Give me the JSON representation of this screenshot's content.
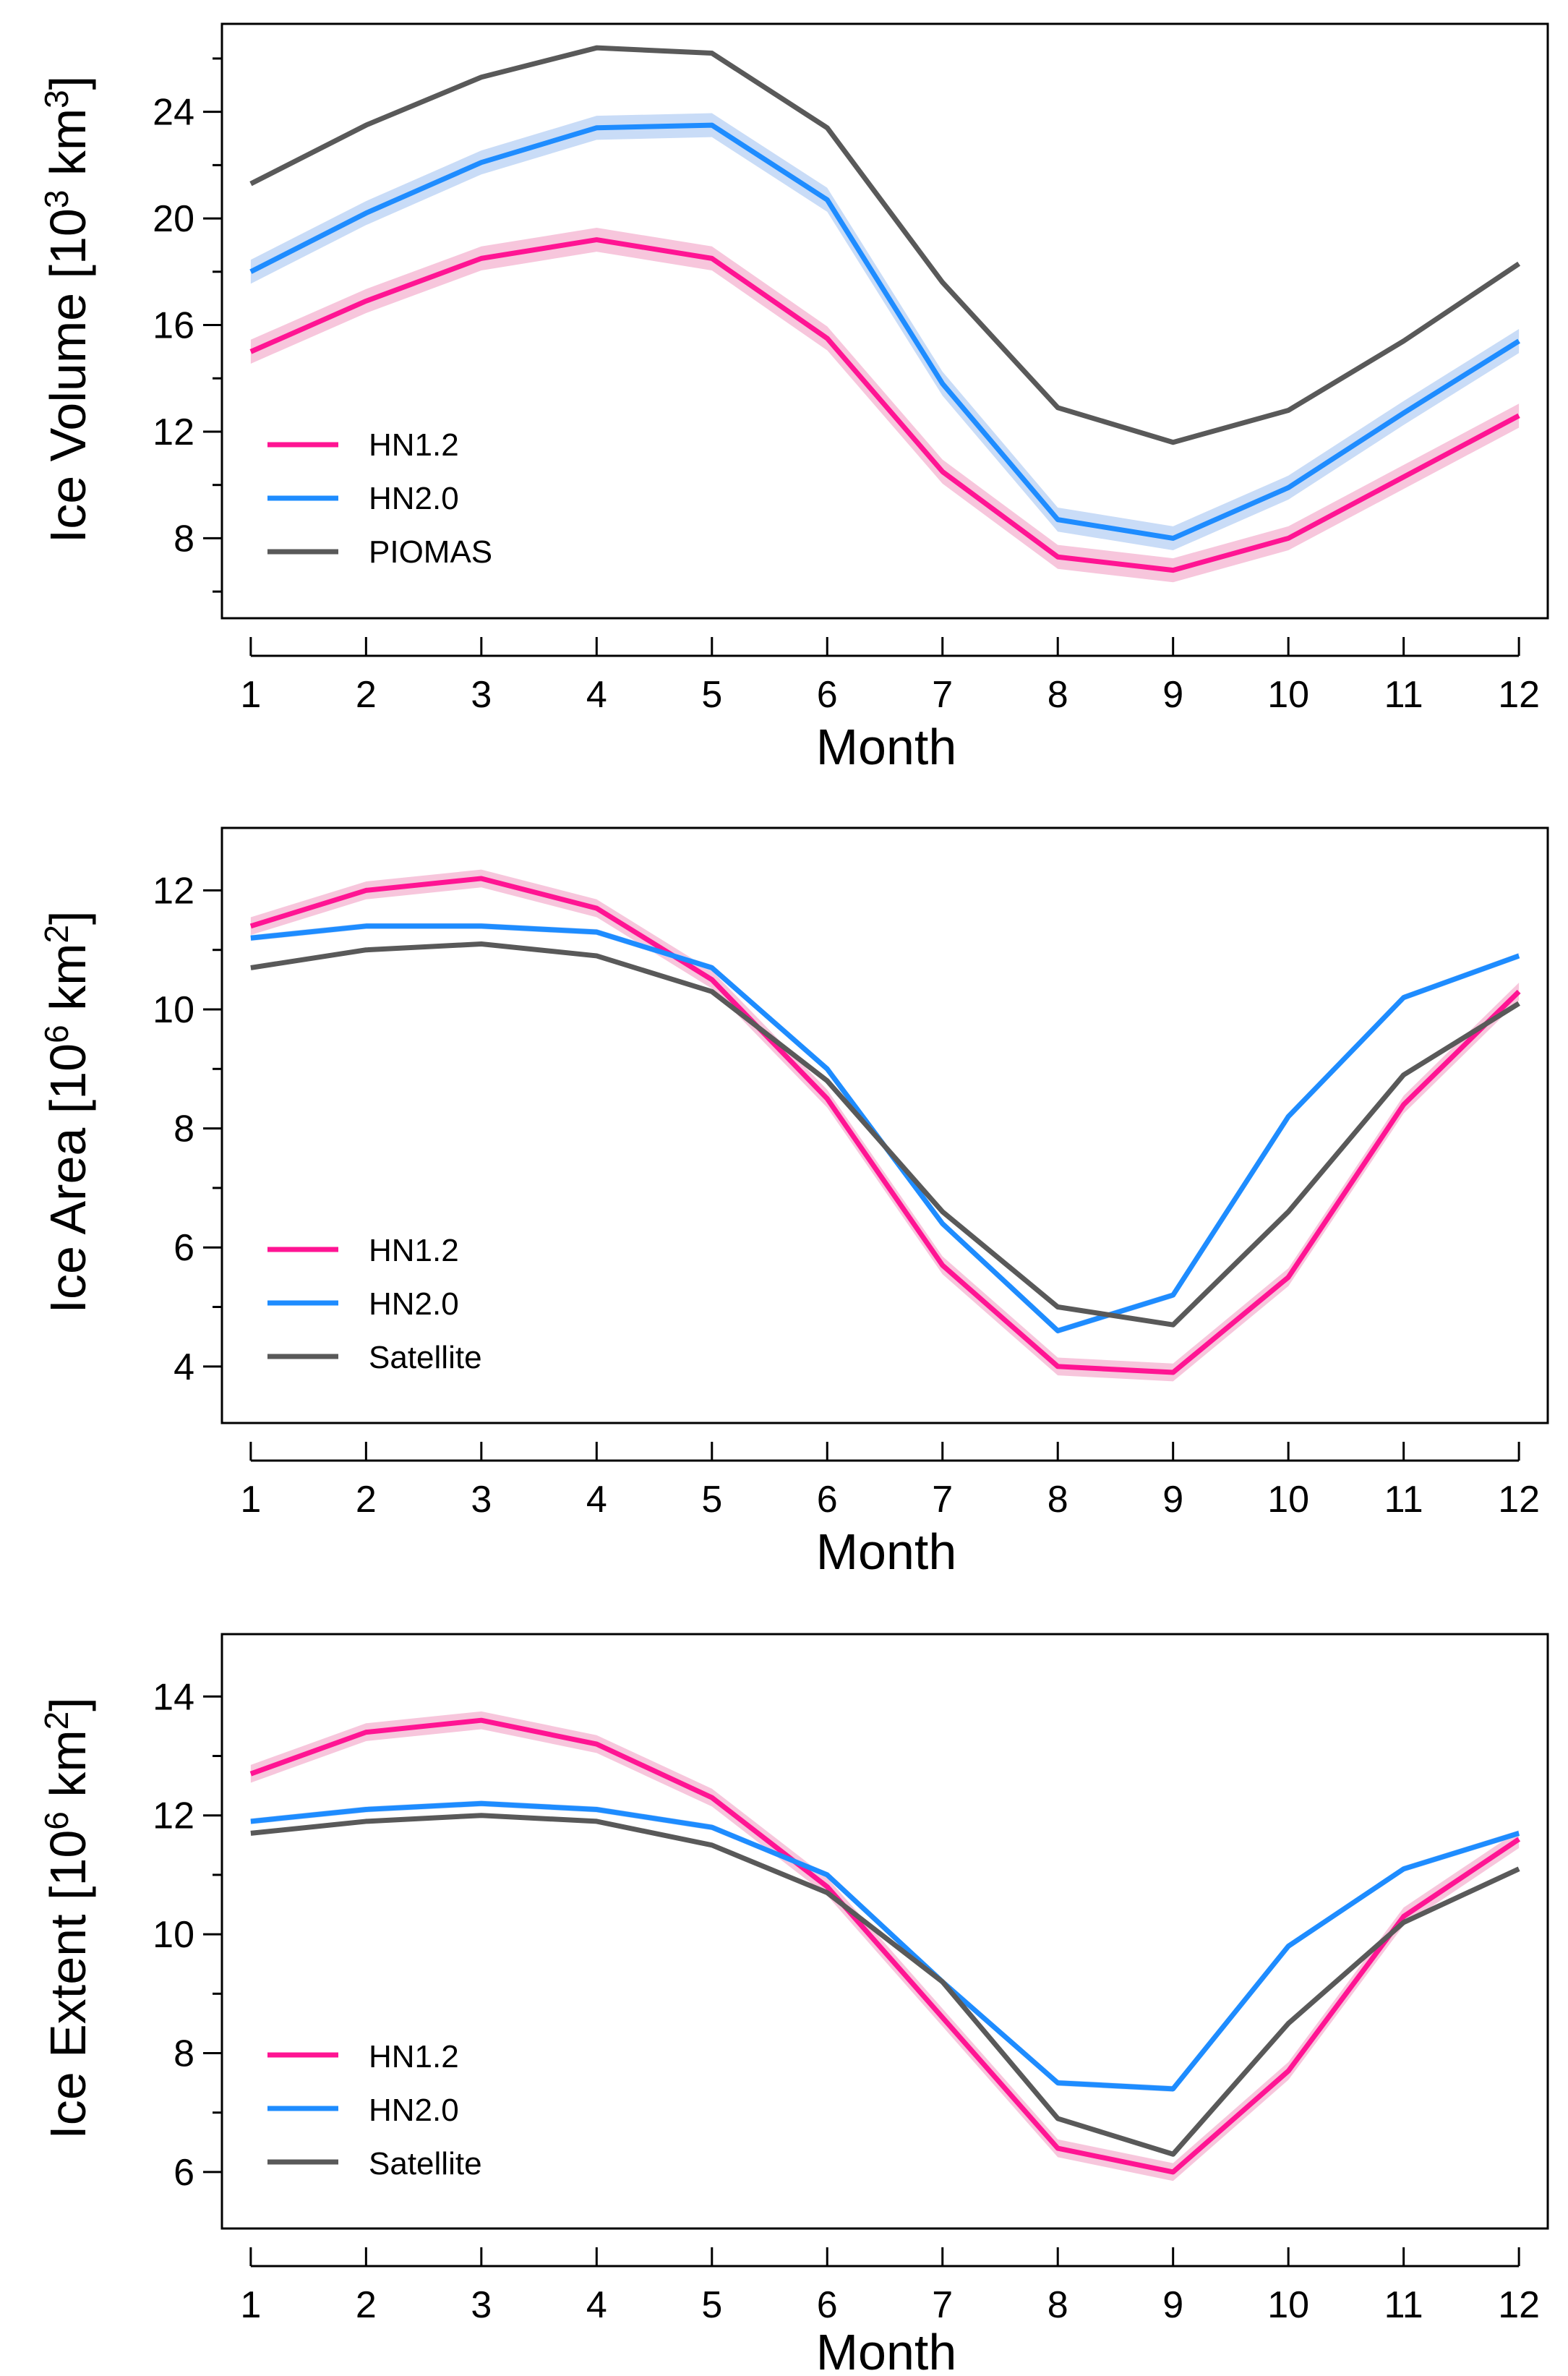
{
  "colors": {
    "HN1.2": "#ff1493",
    "HN2.0": "#1e8cff",
    "PIOMAS": "#595959",
    "Satellite": "#595959",
    "HN1.2_band": "#f7c6dc",
    "HN2.0_band": "#c9dcf7"
  },
  "chart_data": [
    {
      "type": "line",
      "title": "",
      "xlabel": "Month",
      "ylabel_main": "Ice Volume [10",
      "ylabel_sup1": "3",
      "ylabel_mid": " km",
      "ylabel_sup2": "3",
      "ylabel_end": "]",
      "x": [
        1,
        2,
        3,
        4,
        5,
        6,
        7,
        8,
        9,
        10,
        11,
        12
      ],
      "xlim": [
        0.75,
        12.25
      ],
      "ylim": [
        5,
        27.3
      ],
      "yticks": [
        8,
        12,
        16,
        20,
        24
      ],
      "yminor": [
        6,
        10,
        14,
        18,
        22,
        26
      ],
      "legend_position": "bottom-left",
      "series": [
        {
          "name": "HN1.2",
          "values": [
            15.0,
            16.9,
            18.5,
            19.2,
            18.5,
            15.5,
            10.5,
            7.3,
            6.8,
            8.0,
            10.3,
            12.6
          ],
          "band": 0.45
        },
        {
          "name": "HN2.0",
          "values": [
            18.0,
            20.2,
            22.1,
            23.4,
            23.5,
            20.7,
            13.8,
            8.7,
            8.0,
            9.9,
            12.7,
            15.4
          ],
          "band": 0.45
        },
        {
          "name": "PIOMAS",
          "values": [
            21.3,
            23.5,
            25.3,
            26.4,
            26.2,
            23.4,
            17.6,
            12.9,
            11.6,
            12.8,
            15.4,
            18.3
          ]
        }
      ]
    },
    {
      "type": "line",
      "title": "",
      "xlabel": "Month",
      "ylabel_main": "Ice Area [10",
      "ylabel_sup1": "6",
      "ylabel_mid": " km",
      "ylabel_sup2": "2",
      "ylabel_end": "]",
      "x": [
        1,
        2,
        3,
        4,
        5,
        6,
        7,
        8,
        9,
        10,
        11,
        12
      ],
      "xlim": [
        0.75,
        12.25
      ],
      "ylim": [
        3.05,
        13.05
      ],
      "yticks": [
        4,
        6,
        8,
        10,
        12
      ],
      "yminor": [
        5,
        7,
        9,
        11
      ],
      "legend_position": "bottom-left",
      "series": [
        {
          "name": "HN1.2",
          "values": [
            11.4,
            12.0,
            12.2,
            11.7,
            10.5,
            8.5,
            5.7,
            4.0,
            3.9,
            5.5,
            8.4,
            10.3
          ],
          "band": 0.15
        },
        {
          "name": "HN2.0",
          "values": [
            11.2,
            11.4,
            11.4,
            11.3,
            10.7,
            9.0,
            6.4,
            4.6,
            5.2,
            8.2,
            10.2,
            10.9
          ],
          "band": 0.05
        },
        {
          "name": "Satellite",
          "values": [
            10.7,
            11.0,
            11.1,
            10.9,
            10.3,
            8.8,
            6.6,
            5.0,
            4.7,
            6.6,
            8.9,
            10.1
          ]
        }
      ]
    },
    {
      "type": "line",
      "title": "",
      "xlabel": "Month",
      "ylabel_main": "Ice Extent [10",
      "ylabel_sup1": "6",
      "ylabel_mid": " km",
      "ylabel_sup2": "2",
      "ylabel_end": "]",
      "x": [
        1,
        2,
        3,
        4,
        5,
        6,
        7,
        8,
        9,
        10,
        11,
        12
      ],
      "xlim": [
        0.75,
        12.25
      ],
      "ylim": [
        5.05,
        15.05
      ],
      "yticks": [
        6,
        8,
        10,
        12,
        14
      ],
      "yminor": [
        7,
        9,
        11,
        13
      ],
      "legend_position": "bottom-left",
      "series": [
        {
          "name": "HN1.2",
          "values": [
            12.7,
            13.4,
            13.6,
            13.2,
            12.3,
            10.8,
            8.6,
            6.4,
            6.0,
            7.7,
            10.3,
            11.6
          ],
          "band": 0.15
        },
        {
          "name": "HN2.0",
          "values": [
            11.9,
            12.1,
            12.2,
            12.1,
            11.8,
            11.0,
            9.2,
            7.5,
            7.4,
            9.8,
            11.1,
            11.7
          ],
          "band": 0.05
        },
        {
          "name": "Satellite",
          "values": [
            11.7,
            11.9,
            12.0,
            11.9,
            11.5,
            10.7,
            9.2,
            6.9,
            6.3,
            8.5,
            10.2,
            11.1
          ]
        }
      ]
    }
  ]
}
